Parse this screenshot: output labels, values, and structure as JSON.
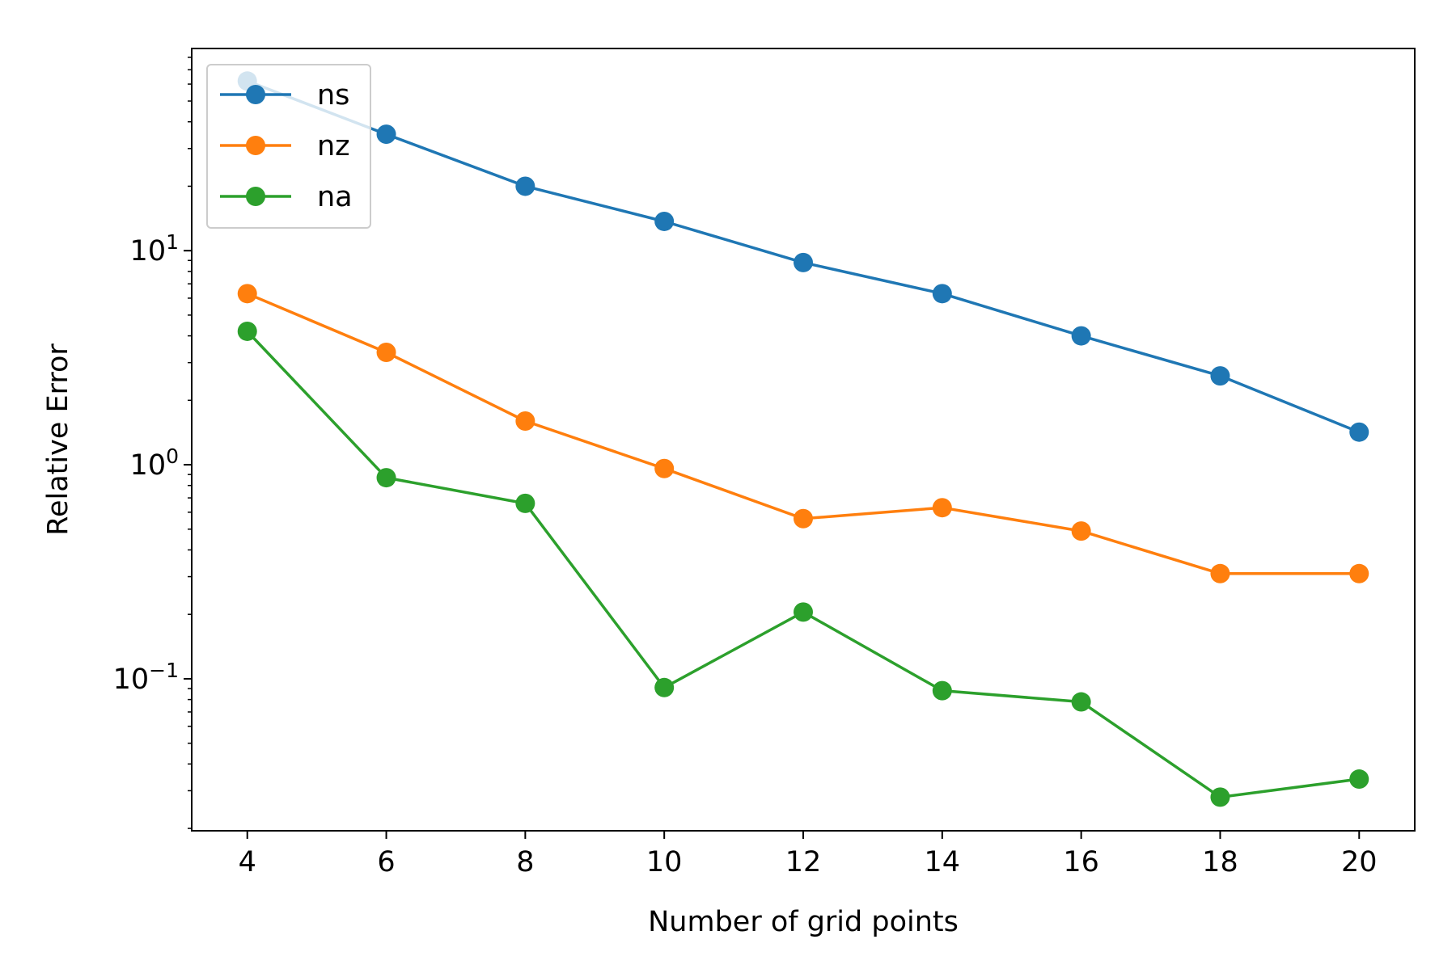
{
  "chart_data": {
    "type": "line",
    "title": "",
    "xlabel": "Number of grid points",
    "ylabel": "Relative Error",
    "x": [
      4,
      6,
      8,
      10,
      12,
      14,
      16,
      18,
      20
    ],
    "x_ticks": [
      4,
      6,
      8,
      10,
      12,
      14,
      16,
      18,
      20
    ],
    "x_tick_labels": [
      "4",
      "6",
      "8",
      "10",
      "12",
      "14",
      "16",
      "18",
      "20"
    ],
    "xlim": [
      3.2,
      20.8
    ],
    "y_scale": "log",
    "ylim": [
      0.0195,
      88
    ],
    "y_major_ticks": [
      0.1,
      1,
      10
    ],
    "y_tick_labels": [
      {
        "base": "10",
        "exp": "−1"
      },
      {
        "base": "10",
        "exp": "0"
      },
      {
        "base": "10",
        "exp": "1"
      }
    ],
    "grid": false,
    "legend_position": "top-left",
    "series": [
      {
        "name": "ns",
        "color": "#1f77b4",
        "values": [
          62,
          35,
          20,
          13.7,
          8.8,
          6.3,
          4.0,
          2.6,
          1.42
        ]
      },
      {
        "name": "nz",
        "color": "#ff7f0e",
        "values": [
          6.3,
          3.35,
          1.6,
          0.96,
          0.56,
          0.63,
          0.49,
          0.31,
          0.31
        ]
      },
      {
        "name": "na",
        "color": "#2ca02c",
        "values": [
          4.2,
          0.87,
          0.66,
          0.091,
          0.205,
          0.088,
          0.078,
          0.028,
          0.034
        ]
      }
    ]
  }
}
